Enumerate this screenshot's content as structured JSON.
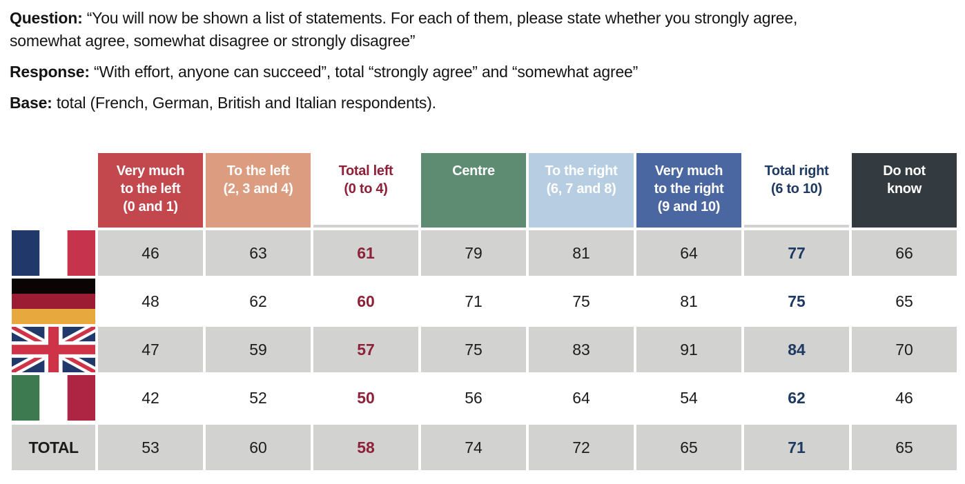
{
  "chart_data": {
    "type": "table",
    "annotations": [
      {
        "label": "Question:",
        "text": " “You will now be shown a list of statements. For each of them, please state whether you strongly agree,\nsomewhat agree, somewhat disagree or strongly disagree”"
      },
      {
        "label": "Response:",
        "text": " “With effort, anyone can succeed”, total “strongly agree” and “somewhat agree”"
      },
      {
        "label": "Base:",
        "text": " total (French, German, British and Italian respondents)."
      }
    ],
    "total_label": "TOTAL",
    "columns": [
      {
        "id": "very-much-left",
        "label": "Very much\nto the left\n(0 and 1)",
        "header_bg": "#c2484e",
        "header_fg": "#ffffff"
      },
      {
        "id": "to-the-left",
        "label": "To the left\n(2, 3 and 4)",
        "header_bg": "#dc9c7f",
        "header_fg": "#ffffff"
      },
      {
        "id": "total-left",
        "label": "Total left\n(0 to 4)",
        "header_bg": "",
        "header_fg": "#8e2038",
        "value_color": "#8e2038"
      },
      {
        "id": "centre",
        "label": "Centre",
        "header_bg": "#5d8c73",
        "header_fg": "#ffffff"
      },
      {
        "id": "to-the-right",
        "label": "To the right\n(6, 7 and 8)",
        "header_bg": "#b7cde1",
        "header_fg": "#ffffff"
      },
      {
        "id": "very-much-right",
        "label": "Very much\nto the right\n(9 and 10)",
        "header_bg": "#4a67a1",
        "header_fg": "#ffffff"
      },
      {
        "id": "total-right",
        "label": "Total right\n(6 to 10)",
        "header_bg": "",
        "header_fg": "#1e3a62",
        "value_color": "#1e3a62"
      },
      {
        "id": "do-not-know",
        "label": "Do not\nknow",
        "header_bg": "#343b40",
        "header_fg": "#ffffff"
      }
    ],
    "rows": [
      {
        "id": "france",
        "country": "France",
        "flag": "fr",
        "shaded": true,
        "values": [
          46,
          63,
          61,
          79,
          81,
          64,
          77,
          66
        ]
      },
      {
        "id": "germany",
        "country": "Germany",
        "flag": "de",
        "shaded": false,
        "values": [
          48,
          62,
          60,
          71,
          75,
          81,
          75,
          65
        ]
      },
      {
        "id": "uk",
        "country": "United Kingdom",
        "flag": "gb",
        "shaded": true,
        "values": [
          47,
          59,
          57,
          75,
          83,
          91,
          84,
          70
        ]
      },
      {
        "id": "italy",
        "country": "Italy",
        "flag": "it",
        "shaded": false,
        "values": [
          42,
          52,
          50,
          56,
          64,
          54,
          62,
          46
        ]
      },
      {
        "id": "total",
        "country": "TOTAL",
        "flag": null,
        "shaded": true,
        "values": [
          53,
          60,
          58,
          74,
          72,
          65,
          71,
          65
        ]
      }
    ]
  },
  "flags": {
    "fr": {
      "type": "vertical",
      "stripes": [
        "#21386b",
        "#ffffff",
        "#c5334d"
      ]
    },
    "de": {
      "type": "horizontal",
      "stripes": [
        "#0a0405",
        "#9c1c33",
        "#e7a93d"
      ]
    },
    "gb": {
      "type": "union-jack",
      "field": "#21386b",
      "cross": "#ce3347",
      "white": "#ffffff"
    },
    "it": {
      "type": "vertical",
      "stripes": [
        "#3e7a50",
        "#ffffff",
        "#ae2543"
      ]
    }
  },
  "colors": {
    "shaded_cell": "#d2d2d1",
    "value_text": "#1c1c1c",
    "intro_text": "#141414"
  }
}
